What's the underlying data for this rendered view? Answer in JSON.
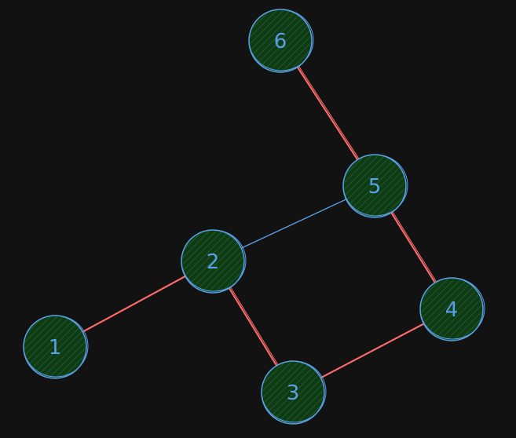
{
  "diagram": {
    "background": "#121212",
    "colors": {
      "node_fill": "#0f3a16",
      "node_hatch": "#1e5a25",
      "node_stroke": "#5aa0e6",
      "edge": "#5aa0e6",
      "path": "#ff6b6b"
    },
    "nodes": [
      {
        "id": "1",
        "label": "1"
      },
      {
        "id": "2",
        "label": "2"
      },
      {
        "id": "3",
        "label": "3"
      },
      {
        "id": "4",
        "label": "4"
      },
      {
        "id": "5",
        "label": "5"
      },
      {
        "id": "6",
        "label": "6"
      }
    ],
    "edges": [
      {
        "from": "1",
        "to": "2"
      },
      {
        "from": "2",
        "to": "5"
      },
      {
        "from": "2",
        "to": "3"
      },
      {
        "from": "3",
        "to": "4"
      },
      {
        "from": "4",
        "to": "5"
      },
      {
        "from": "5",
        "to": "6"
      }
    ],
    "highlighted_path": [
      "1",
      "2",
      "3",
      "4",
      "5",
      "6"
    ]
  }
}
